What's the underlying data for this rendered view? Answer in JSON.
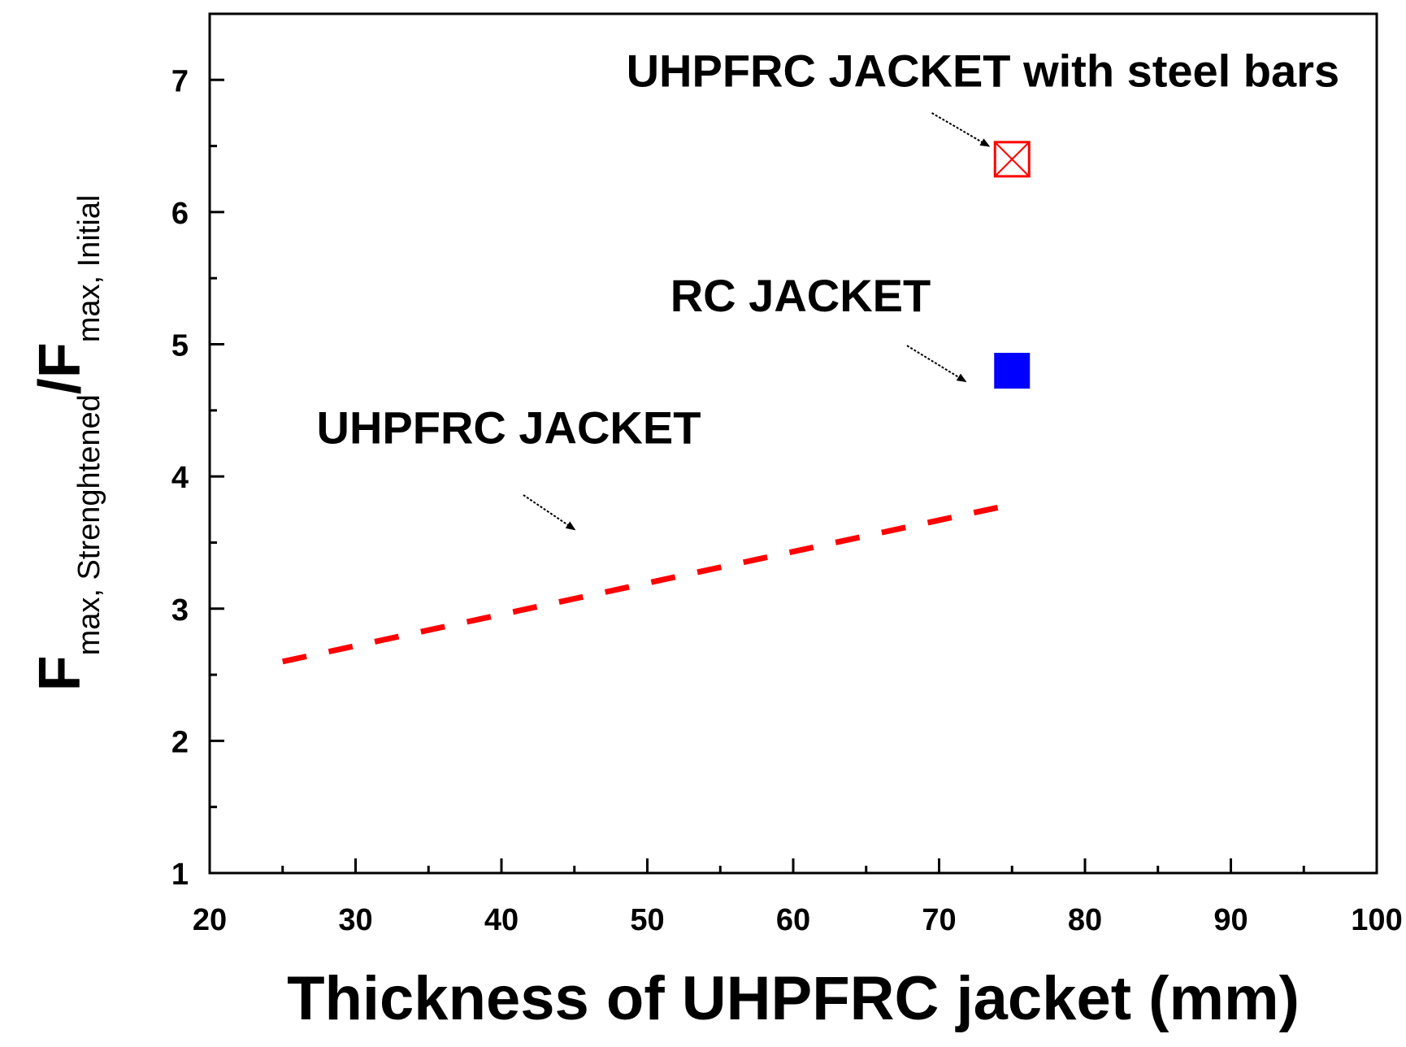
{
  "chart_data": {
    "type": "scatter",
    "title": "",
    "xlabel": "Thickness of UHPFRC jacket (mm)",
    "ylabel": {
      "main": "F",
      "sub1": "max, Strenghtened",
      "slash": "/F",
      "sub2": "max, Initial"
    },
    "xlim": [
      20,
      100
    ],
    "ylim": [
      1,
      7.5
    ],
    "x_ticks": [
      20,
      30,
      40,
      50,
      60,
      70,
      80,
      90,
      100
    ],
    "y_ticks": [
      1,
      2,
      3,
      4,
      5,
      6,
      7
    ],
    "grid": false,
    "series": [
      {
        "kind": "dashed-line",
        "color": "#ff0000",
        "x": [
          25,
          75.5
        ],
        "y": [
          2.6,
          3.8
        ]
      },
      {
        "kind": "marker-square-crossed",
        "color": "#ff0000",
        "x": [
          75
        ],
        "y": [
          6.4
        ]
      },
      {
        "kind": "marker-square-filled",
        "color": "#0000ff",
        "x": [
          75
        ],
        "y": [
          4.8
        ]
      }
    ],
    "annotations": [
      {
        "text": "UHPFRC JACKET with steel bars",
        "x": 73,
        "y": 6.95,
        "arrow_from": [
          69.5,
          6.75
        ],
        "arrow_to": [
          73.4,
          6.5
        ]
      },
      {
        "text": "RC JACKET",
        "x": 60.5,
        "y": 5.25,
        "arrow_from": [
          67.8,
          4.99
        ],
        "arrow_to": [
          71.8,
          4.72
        ]
      },
      {
        "text": "UHPFRC JACKET",
        "x": 40.5,
        "y": 4.25,
        "arrow_from": [
          41.5,
          3.86
        ],
        "arrow_to": [
          45.0,
          3.6
        ]
      }
    ]
  }
}
